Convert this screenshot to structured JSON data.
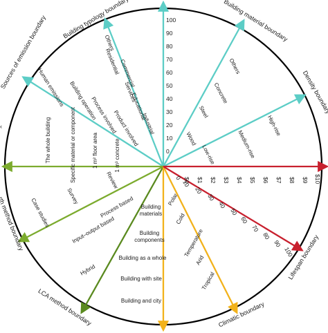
{
  "colors": {
    "circle": "#000000",
    "height_axis": "#5ccdc6",
    "other_axes": "#5ccdc6",
    "sources": "#5ccdc6",
    "method": "#7cab2e",
    "lca_method": "#5a8a1f",
    "climatic": "#f2b21b",
    "lifespan": "#c8202e",
    "cost": "#c8202e"
  },
  "titles": {
    "building_typology": "Building typology boundary",
    "building_material": "Building material boundary",
    "density": "Density boundary",
    "sources_of_emission": "Sources of emission boundary",
    "method_partial": "rth method boundary",
    "lca_method": "LCA method boundary",
    "climatic": "Climatic boundary",
    "lifespan": "Lifespan boundary"
  },
  "height_scale": [
    "100",
    "90",
    "80",
    "70",
    "60",
    "50",
    "40",
    "30",
    "20",
    "10",
    "0"
  ],
  "typology": [
    "Others",
    "Residential",
    "Commercial",
    "Services",
    "Educational",
    "Industrial"
  ],
  "material": [
    "Others",
    "Concrete",
    "Steel",
    "Wood"
  ],
  "density": [
    "High-rise",
    "Medium-rise",
    "Low-rise"
  ],
  "sources": [
    "Human emissions",
    "Building operation",
    "Process involved",
    "Product involved"
  ],
  "scope": [
    "The whole building",
    "Specific material or component",
    "1 m² floor area",
    "1 m³ concrete"
  ],
  "cost_scale": [
    "$0",
    "$1",
    "$2",
    "$3",
    "$4",
    "$5",
    "$6",
    "$7",
    "$8",
    "$9",
    "$10"
  ],
  "lifespan_scale": [
    "0",
    "10",
    "20",
    "30",
    "40",
    "50",
    "60",
    "70",
    "80",
    "90",
    "100"
  ],
  "method": [
    "Review",
    "Survey",
    "Case studies"
  ],
  "lca_method": [
    "Process based",
    "Input–output based",
    "Hybrid"
  ],
  "building_scale": [
    "Building materials",
    "Building components",
    "Building as a whole",
    "Building with site",
    "Building and city"
  ],
  "climate": [
    "Polar",
    "Cold",
    "Temperature",
    "Arid",
    "Tropical"
  ]
}
